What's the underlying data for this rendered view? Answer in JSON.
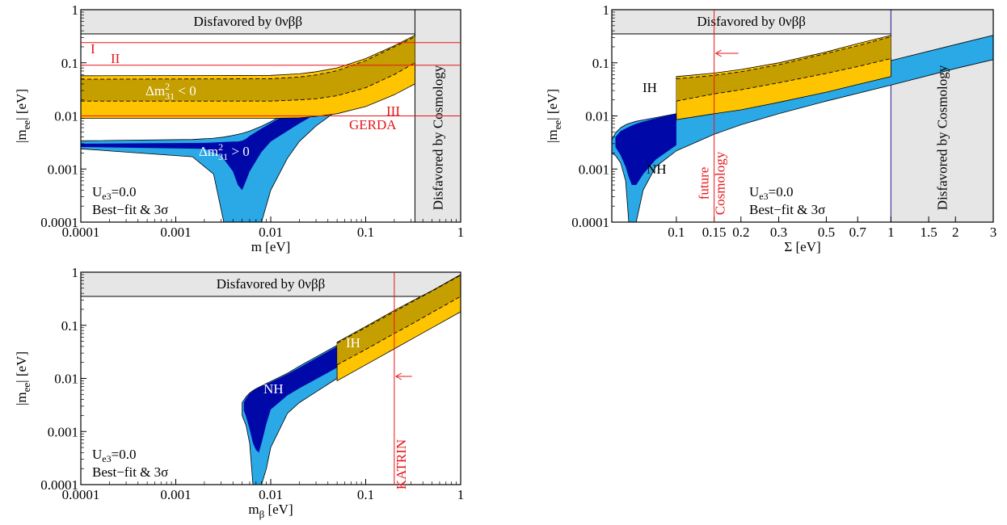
{
  "chart_data": [
    {
      "id": "mee_vs_m",
      "type": "area",
      "xlabel": "m [eV]",
      "ylabel": "|m_ee| [eV]",
      "xscale": "log",
      "yscale": "log",
      "xlim": [
        0.0001,
        1
      ],
      "ylim": [
        0.0001,
        1
      ],
      "xticks": [
        "0.0001",
        "0.001",
        "0.01",
        "0.1",
        "1"
      ],
      "yticks": [
        "0.0001",
        "0.001",
        "0.01",
        "0.1",
        "1"
      ],
      "annotations": {
        "disfavored_0vbb": "Disfavored by 0νββ",
        "disfavored_cosmology": "Disfavored by Cosmology",
        "inverted_label": "Δm²₃₁ < 0",
        "normal_label": "Δm²₃₁ > 0",
        "ue3": "U_e3=0.0",
        "bestfit": "Best−fit & 3σ",
        "line_I": "I",
        "line_II": "II",
        "line_III": "III",
        "gerda": "GERDA"
      },
      "horizontal_lines": [
        {
          "label": "I",
          "y": 0.24
        },
        {
          "label": "II",
          "y": 0.09
        },
        {
          "label": "III",
          "y": 0.01
        }
      ],
      "disfavored_0vbb_above": 0.35,
      "disfavored_cosmology_above": 0.33,
      "normal_band_3sigma": {
        "x": [
          0.0001,
          0.0015,
          0.0025,
          0.0032,
          0.004,
          0.005,
          0.006,
          0.008,
          0.01,
          0.015,
          0.02,
          0.03,
          0.05,
          0.1,
          0.2,
          0.33
        ],
        "upper": [
          0.0034,
          0.0036,
          0.0038,
          0.004,
          0.0043,
          0.0047,
          0.0052,
          0.0064,
          0.0078,
          0.0115,
          0.016,
          0.024,
          0.039,
          0.08,
          0.165,
          0.33
        ],
        "lower": [
          0.0024,
          0.0017,
          0.0008,
          0.0001,
          0.0001,
          0.0001,
          0.0001,
          0.0001,
          0.0004,
          0.0016,
          0.0033,
          0.0065,
          0.0125,
          0.026,
          0.054,
          0.09
        ]
      },
      "normal_band_bestfit": {
        "x": [
          0.0001,
          0.002,
          0.003,
          0.004,
          0.0045,
          0.005,
          0.0055,
          0.006,
          0.008,
          0.01,
          0.02,
          0.05,
          0.1,
          0.2,
          0.33
        ],
        "upper": [
          0.003,
          0.0031,
          0.0032,
          0.0033,
          0.0033,
          0.0034,
          0.0037,
          0.0042,
          0.0058,
          0.0073,
          0.015,
          0.036,
          0.075,
          0.15,
          0.25
        ],
        "lower": [
          0.0026,
          0.0024,
          0.0018,
          0.0009,
          0.0005,
          0.0004,
          0.0006,
          0.0009,
          0.0021,
          0.0033,
          0.0072,
          0.0185,
          0.038,
          0.077,
          0.127
        ]
      },
      "inverted_band_3sigma": {
        "x": [
          0.0001,
          0.01,
          0.02,
          0.03,
          0.05,
          0.1,
          0.2,
          0.33
        ],
        "upper": [
          0.057,
          0.058,
          0.062,
          0.068,
          0.08,
          0.12,
          0.21,
          0.33
        ],
        "lower": [
          0.009,
          0.009,
          0.0092,
          0.0098,
          0.011,
          0.015,
          0.025,
          0.04
        ]
      },
      "inverted_band_bestfit": {
        "x": [
          0.0001,
          0.01,
          0.02,
          0.03,
          0.05,
          0.1,
          0.2,
          0.33
        ],
        "upper": [
          0.049,
          0.05,
          0.054,
          0.059,
          0.071,
          0.11,
          0.2,
          0.31
        ],
        "lower": [
          0.019,
          0.019,
          0.02,
          0.021,
          0.024,
          0.034,
          0.06,
          0.1
        ]
      }
    },
    {
      "id": "mee_vs_sigma",
      "type": "area",
      "xlabel": "Σ [eV]",
      "ylabel": "|m_ee| [eV]",
      "xscale": "log",
      "yscale": "log",
      "xlim": [
        0.05,
        3
      ],
      "ylim": [
        0.0001,
        1
      ],
      "xticks": [
        "0.1",
        "0.15",
        "0.2",
        "0.3",
        "0.5",
        "0.7",
        "1",
        "1.5",
        "2",
        "3"
      ],
      "yticks": [
        "0.0001",
        "0.001",
        "0.01",
        "0.1",
        "1"
      ],
      "annotations": {
        "disfavored_0vbb": "Disfavored by 0νββ",
        "disfavored_cosmology": "Disfavored by Cosmology",
        "future": "future",
        "cosmology": "Cosmology",
        "ih": "IH",
        "nh": "NH",
        "ue3": "U_e3=0.0",
        "bestfit": "Best−fit & 3σ"
      },
      "future_cosmology_limit": 0.15,
      "disfavored_cosmology_above": 1,
      "disfavored_0vbb_above": 0.35,
      "normal_band_3sigma": {
        "x": [
          0.05,
          0.052,
          0.055,
          0.058,
          0.06,
          0.062,
          0.065,
          0.07,
          0.08,
          0.1,
          0.15,
          0.2,
          0.3,
          0.5,
          1,
          2,
          3
        ],
        "upper": [
          0.0035,
          0.0048,
          0.006,
          0.0068,
          0.0072,
          0.0075,
          0.0079,
          0.0084,
          0.0093,
          0.011,
          0.016,
          0.022,
          0.032,
          0.055,
          0.11,
          0.22,
          0.33
        ],
        "lower": [
          0.002,
          0.0018,
          0.0013,
          0.0006,
          0.0001,
          0.0001,
          0.0001,
          0.0004,
          0.0011,
          0.0022,
          0.0045,
          0.0068,
          0.011,
          0.019,
          0.038,
          0.078,
          0.115
        ]
      },
      "normal_band_bestfit": {
        "x": [
          0.052,
          0.055,
          0.058,
          0.06,
          0.062,
          0.065,
          0.07,
          0.08,
          0.1
        ],
        "upper": [
          0.004,
          0.0052,
          0.0058,
          0.0062,
          0.0066,
          0.0071,
          0.0078,
          0.009,
          0.011
        ],
        "lower": [
          0.0026,
          0.0018,
          0.0011,
          0.0007,
          0.0005,
          0.0005,
          0.0008,
          0.0015,
          0.0028
        ]
      },
      "inverted_band_3sigma": {
        "x": [
          0.1,
          0.15,
          0.2,
          0.3,
          0.5,
          0.7,
          1
        ],
        "upper": [
          0.055,
          0.064,
          0.075,
          0.1,
          0.16,
          0.23,
          0.33
        ],
        "lower": [
          0.0085,
          0.011,
          0.013,
          0.018,
          0.028,
          0.039,
          0.055
        ]
      },
      "inverted_band_bestfit": {
        "x": [
          0.1,
          0.15,
          0.2,
          0.3,
          0.5,
          0.7,
          1
        ],
        "upper": [
          0.05,
          0.058,
          0.068,
          0.092,
          0.15,
          0.21,
          0.31
        ],
        "lower": [
          0.019,
          0.026,
          0.031,
          0.042,
          0.063,
          0.085,
          0.12
        ]
      }
    },
    {
      "id": "mee_vs_mbeta",
      "type": "area",
      "xlabel": "m_β [eV]",
      "ylabel": "|m_ee| [eV]",
      "xscale": "log",
      "yscale": "log",
      "xlim": [
        0.0001,
        1
      ],
      "ylim": [
        0.0001,
        1
      ],
      "xticks": [
        "0.0001",
        "0.001",
        "0.01",
        "0.1",
        "1"
      ],
      "yticks": [
        "0.0001",
        "0.001",
        "0.01",
        "0.1",
        "1"
      ],
      "annotations": {
        "disfavored_0vbb": "Disfavored by 0νββ",
        "katrin": "KATRIN",
        "ih": "IH",
        "nh": "NH",
        "ue3": "U_e3=0.0",
        "bestfit": "Best−fit & 3σ"
      },
      "katrin_limit": 0.2,
      "disfavored_0vbb_above": 0.35,
      "normal_band_3sigma": {
        "x": [
          0.005,
          0.0055,
          0.006,
          0.0065,
          0.007,
          0.0075,
          0.008,
          0.009,
          0.01,
          0.015,
          0.02,
          0.05,
          0.1,
          0.2,
          0.5,
          1
        ],
        "upper": [
          0.0035,
          0.0045,
          0.0053,
          0.0059,
          0.0064,
          0.0068,
          0.0072,
          0.008,
          0.0088,
          0.0125,
          0.017,
          0.042,
          0.085,
          0.17,
          0.42,
          0.85
        ],
        "lower": [
          0.002,
          0.0013,
          0.0006,
          0.0001,
          0.0001,
          0.0001,
          0.0001,
          0.0002,
          0.0005,
          0.0022,
          0.0035,
          0.01,
          0.02,
          0.04,
          0.1,
          0.2
        ]
      },
      "normal_band_bestfit": {
        "x": [
          0.0052,
          0.0055,
          0.006,
          0.0065,
          0.007,
          0.0075,
          0.008,
          0.009,
          0.01,
          0.015,
          0.02,
          0.05
        ],
        "upper": [
          0.0035,
          0.0042,
          0.0052,
          0.0058,
          0.0063,
          0.0067,
          0.0071,
          0.0078,
          0.0085,
          0.012,
          0.016,
          0.04
        ],
        "lower": [
          0.0025,
          0.0019,
          0.0011,
          0.0006,
          0.00045,
          0.0004,
          0.0006,
          0.0014,
          0.0026,
          0.0048,
          0.0065,
          0.016
        ]
      },
      "inverted_band_3sigma": {
        "x": [
          0.05,
          0.1,
          0.2,
          0.3,
          0.5,
          1
        ],
        "upper": [
          0.048,
          0.095,
          0.19,
          0.28,
          0.45,
          0.9
        ],
        "lower": [
          0.009,
          0.018,
          0.036,
          0.054,
          0.09,
          0.18
        ]
      },
      "inverted_band_bestfit": {
        "x": [
          0.05,
          0.1,
          0.2,
          0.3,
          0.5,
          1
        ],
        "upper": [
          0.046,
          0.091,
          0.18,
          0.27,
          0.44,
          0.88
        ],
        "lower": [
          0.018,
          0.035,
          0.07,
          0.104,
          0.174,
          0.35
        ]
      }
    }
  ],
  "colors": {
    "normal_3sigma": "#2aa9e6",
    "normal_bestfit": "#0008a8",
    "inverted_3sigma": "#ffc400",
    "inverted_bestfit": "#c59e00",
    "disfavored_fill": "#e6e6e6",
    "limit_red": "#e8141a",
    "axis": "#000000"
  }
}
